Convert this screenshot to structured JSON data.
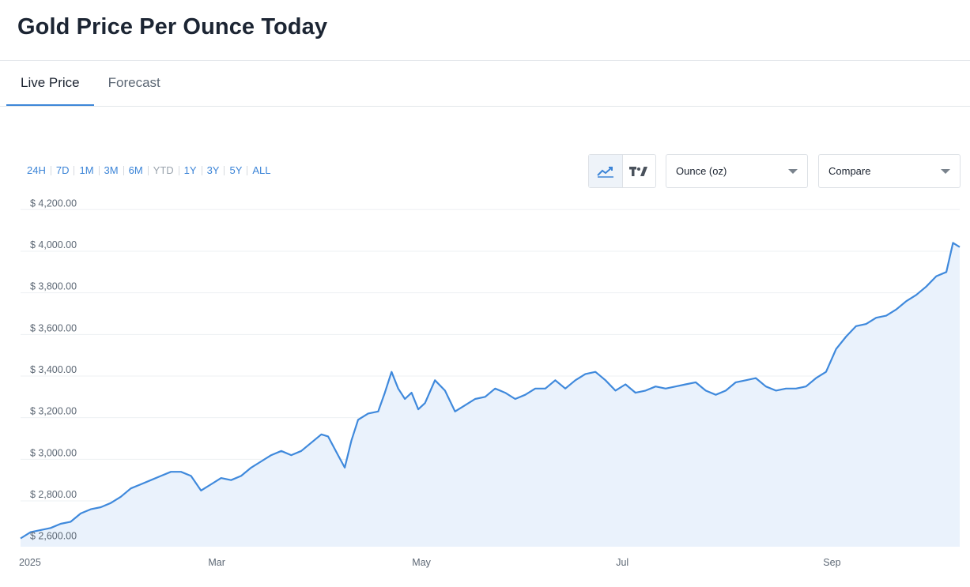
{
  "header": {
    "title": "Gold Price Per Ounce Today"
  },
  "tabs": [
    {
      "label": "Live Price",
      "active": true
    },
    {
      "label": "Forecast",
      "active": false
    }
  ],
  "toolbar": {
    "ranges": [
      "24H",
      "7D",
      "1M",
      "3M",
      "6M",
      "YTD",
      "1Y",
      "3Y",
      "5Y",
      "ALL"
    ],
    "disabled_range": "YTD",
    "chart_type_icons": [
      "line-chart-icon",
      "tradingview-icon"
    ],
    "unit_select": {
      "value": "Ounce (oz)"
    },
    "compare_select": {
      "value": "Compare"
    }
  },
  "colors": {
    "accent": "#3b84d7",
    "line": "#3f89dc",
    "area": "#eaf2fc"
  },
  "chart_data": {
    "type": "area",
    "title": "",
    "xlabel": "",
    "ylabel": "",
    "ylim": [
      2580,
      4220
    ],
    "y_ticks": [
      "$ 2,600.00",
      "$ 2,800.00",
      "$ 3,000.00",
      "$ 3,200.00",
      "$ 3,400.00",
      "$ 3,600.00",
      "$ 3,800.00",
      "$ 4,000.00",
      "$ 4,200.00"
    ],
    "y_tick_values": [
      2600,
      2800,
      3000,
      3200,
      3400,
      3600,
      3800,
      4000,
      4200
    ],
    "x_ticks": [
      "2025",
      "Mar",
      "May",
      "Jul",
      "Sep"
    ],
    "x_tick_dates": [
      "2025-01-01",
      "2025-03-01",
      "2025-05-01",
      "2025-07-01",
      "2025-09-01"
    ],
    "x_range": [
      "2025-01-01",
      "2025-10-09"
    ],
    "grid": true,
    "legend": "none",
    "series": [
      {
        "x": [
          "2025-01-01",
          "2025-01-04",
          "2025-01-07",
          "2025-01-10",
          "2025-01-13",
          "2025-01-16",
          "2025-01-19",
          "2025-01-22",
          "2025-01-25",
          "2025-01-28",
          "2025-01-31",
          "2025-02-03",
          "2025-02-06",
          "2025-02-09",
          "2025-02-12",
          "2025-02-15",
          "2025-02-18",
          "2025-02-21",
          "2025-02-24",
          "2025-02-27",
          "2025-03-02",
          "2025-03-05",
          "2025-03-08",
          "2025-03-11",
          "2025-03-14",
          "2025-03-17",
          "2025-03-20",
          "2025-03-23",
          "2025-03-26",
          "2025-03-29",
          "2025-04-01",
          "2025-04-03",
          "2025-04-06",
          "2025-04-08",
          "2025-04-10",
          "2025-04-12",
          "2025-04-15",
          "2025-04-18",
          "2025-04-20",
          "2025-04-22",
          "2025-04-24",
          "2025-04-26",
          "2025-04-28",
          "2025-04-30",
          "2025-05-02",
          "2025-05-05",
          "2025-05-08",
          "2025-05-11",
          "2025-05-14",
          "2025-05-17",
          "2025-05-20",
          "2025-05-23",
          "2025-05-26",
          "2025-05-29",
          "2025-06-01",
          "2025-06-04",
          "2025-06-07",
          "2025-06-10",
          "2025-06-13",
          "2025-06-16",
          "2025-06-19",
          "2025-06-22",
          "2025-06-25",
          "2025-06-28",
          "2025-07-01",
          "2025-07-04",
          "2025-07-07",
          "2025-07-10",
          "2025-07-13",
          "2025-07-16",
          "2025-07-19",
          "2025-07-22",
          "2025-07-25",
          "2025-07-28",
          "2025-07-31",
          "2025-08-03",
          "2025-08-06",
          "2025-08-09",
          "2025-08-12",
          "2025-08-15",
          "2025-08-18",
          "2025-08-21",
          "2025-08-24",
          "2025-08-27",
          "2025-08-30",
          "2025-09-02",
          "2025-09-05",
          "2025-09-08",
          "2025-09-11",
          "2025-09-14",
          "2025-09-17",
          "2025-09-20",
          "2025-09-23",
          "2025-09-26",
          "2025-09-29",
          "2025-10-02",
          "2025-10-05",
          "2025-10-07",
          "2025-10-09"
        ],
        "values": [
          2620,
          2650,
          2660,
          2670,
          2690,
          2700,
          2740,
          2760,
          2770,
          2790,
          2820,
          2860,
          2880,
          2900,
          2920,
          2940,
          2940,
          2920,
          2850,
          2880,
          2910,
          2900,
          2920,
          2960,
          2990,
          3020,
          3040,
          3020,
          3040,
          3080,
          3120,
          3110,
          3020,
          2960,
          3090,
          3190,
          3220,
          3230,
          3320,
          3420,
          3340,
          3290,
          3320,
          3240,
          3270,
          3380,
          3330,
          3230,
          3260,
          3290,
          3300,
          3340,
          3320,
          3290,
          3310,
          3340,
          3340,
          3380,
          3340,
          3380,
          3410,
          3420,
          3380,
          3330,
          3360,
          3320,
          3330,
          3350,
          3340,
          3350,
          3360,
          3370,
          3330,
          3310,
          3330,
          3370,
          3380,
          3390,
          3350,
          3330,
          3340,
          3340,
          3350,
          3390,
          3420,
          3530,
          3590,
          3640,
          3650,
          3680,
          3690,
          3720,
          3760,
          3790,
          3830,
          3880,
          3900,
          4040,
          4020
        ]
      }
    ]
  }
}
